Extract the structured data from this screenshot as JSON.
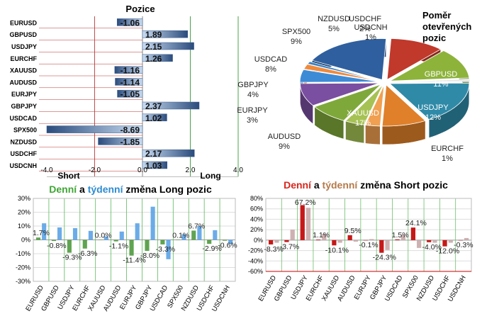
{
  "positions_chart": {
    "title": "Pozice",
    "label_short": "Short",
    "label_long": "Long",
    "ticks": [
      "-4.0",
      "-2.0",
      "0.0",
      "2.0",
      "4.0"
    ],
    "colors": {
      "bar_dark": "#2a4b7c",
      "bar_light": "#c9dcf2",
      "line_red": "#c0504d",
      "line_green": "#4aa34a"
    }
  },
  "pie_chart": {
    "title": "Poměr otevřených pozic"
  },
  "long_chart": {
    "title_parts": [
      "Denní",
      " a ",
      "týdenní",
      " změna Long pozic"
    ],
    "title_colors": [
      "#3fa535",
      "#000000",
      "#2e8bd1",
      "#000000"
    ],
    "yticks": [
      "30%",
      "20%",
      "10%",
      "0%",
      "-10%",
      "-20%",
      "-30%"
    ],
    "colors": {
      "daily": "#4e9a3e",
      "weekly": "#5ba3e6"
    }
  },
  "short_chart": {
    "title_parts": [
      "Denní",
      " a ",
      "týdenní",
      " změna Short pozic"
    ],
    "title_colors": [
      "#d9261c",
      "#000000",
      "#b57a4a",
      "#000000"
    ],
    "yticks": [
      "80%",
      "60%",
      "40%",
      "20%",
      "0%",
      "-20%",
      "-40%",
      "-60%"
    ],
    "colors": {
      "daily": "#c00000",
      "weekly": "#c9a8a8"
    }
  },
  "chart_data": [
    {
      "type": "bar",
      "orientation": "horizontal",
      "title": "Pozice",
      "categories": [
        "EURUSD",
        "GBPUSD",
        "USDJPY",
        "EURCHF",
        "XAUUSD",
        "AUDUSD",
        "EURJPY",
        "GBPJPY",
        "USDCAD",
        "SPX500",
        "NZDUSD",
        "USDCHF",
        "USDCNH"
      ],
      "values": [
        -1.06,
        1.89,
        2.15,
        1.26,
        -1.16,
        -1.14,
        -1.05,
        2.37,
        1.02,
        -8.69,
        -1.85,
        2.17,
        1.03
      ],
      "value_labels": [
        "-1.06",
        "1.89",
        "2.15",
        "1.26",
        "-1.16",
        "-1.14",
        "-1.05",
        "2.37",
        "1.02",
        "-8.69",
        "-1.85",
        "2.17",
        "1.03"
      ],
      "xlim": [
        -4.0,
        4.0
      ]
    },
    {
      "type": "pie",
      "title": "Poměr otevřených pozic",
      "categories": [
        "GBPUSD",
        "USDJPY",
        "EURCHF",
        "XAUUSD",
        "AUDUSD",
        "EURJPY",
        "GBPJPY",
        "USDCAD",
        "SPX500",
        "NZDUSD",
        "USDCHF",
        "USDCNH",
        "EURUSD"
      ],
      "labels": [
        "GBPUSD\n11%",
        "USDJPY\n12%",
        "EURCHF\n1%",
        "XAUUSD\n17%",
        "AUDUSD\n9%",
        "EURJPY\n3%",
        "GBPJPY\n4%",
        "USDCAD\n8%",
        "SPX500\n9%",
        "NZDUSD\n5%",
        "USDCHF\n2%",
        "USDCNH\n1%",
        ""
      ],
      "values": [
        11,
        12,
        1,
        17,
        9,
        3,
        4,
        8,
        9,
        5,
        2,
        1,
        18
      ],
      "colors": [
        "#c0392b",
        "#8db33b",
        "#e8e8e8",
        "#2f8aa8",
        "#e0802a",
        "#f0a050",
        "#a6c254",
        "#7fa83a",
        "#7a4ea0",
        "#3d8bd6",
        "#f08a3c",
        "#3b82c4",
        "#2f5f9e"
      ]
    },
    {
      "type": "bar",
      "title": "Denní a týdenní změna Long pozic",
      "categories": [
        "EURUSD",
        "GBPUSD",
        "USDJPY",
        "EURCHF",
        "XAUUSD",
        "AUDUSD",
        "EURJPY",
        "GBPJPY",
        "USDCAD",
        "SPX500",
        "NZDUSD",
        "USDCHF",
        "USDCNH"
      ],
      "series": [
        {
          "name": "Denní",
          "values": [
            1.7,
            -0.8,
            -9.3,
            -6.3,
            0.0,
            -1.1,
            -11.4,
            -8.0,
            -3.3,
            0.1,
            6.7,
            -2.9,
            -0.6
          ]
        },
        {
          "name": "týdenní",
          "values": [
            12.0,
            9.0,
            8.5,
            6.5,
            2.5,
            6.0,
            12.0,
            24.0,
            -14.0,
            4.0,
            10.0,
            7.0,
            -3.0
          ]
        }
      ],
      "value_labels": [
        "1.7%",
        "-0.8%",
        "-9.3%",
        "-6.3%",
        "0.0%",
        "-1.1%",
        "-11.4%",
        "-8.0%",
        "-3.3%",
        "0.1%",
        "6.7%",
        "-2.9%",
        "-0.6%"
      ],
      "ylim": [
        -30,
        30
      ]
    },
    {
      "type": "bar",
      "title": "Denní a týdenní změna Short pozic",
      "categories": [
        "EURUSD",
        "GBPUSD",
        "USDJPY",
        "EURCHF",
        "XAUUSD",
        "AUDUSD",
        "EURJPY",
        "GBPJPY",
        "USDCAD",
        "SPX500",
        "NZDUSD",
        "USDCHF",
        "USDCNH"
      ],
      "series": [
        {
          "name": "Denní",
          "values": [
            -8.3,
            -3.7,
            67.2,
            1.1,
            -10.1,
            9.5,
            -0.1,
            -24.3,
            1.5,
            24.1,
            -4.0,
            -12.0,
            -0.3
          ]
        },
        {
          "name": "týdenní",
          "values": [
            -5.0,
            20.0,
            62.0,
            12.0,
            -5.0,
            -3.0,
            2.0,
            -19.0,
            10.0,
            -15.0,
            -5.0,
            -5.0,
            4.0
          ]
        }
      ],
      "value_labels": [
        "-8.3%",
        "-3.7%",
        "67.2%",
        "1.1%",
        "-10.1%",
        "9.5%",
        "-0.1%",
        "-24.3%",
        "1.5%",
        "24.1%",
        "-4.0%",
        "-12.0%",
        "-0.3%"
      ],
      "ylim": [
        -60,
        80
      ]
    }
  ]
}
